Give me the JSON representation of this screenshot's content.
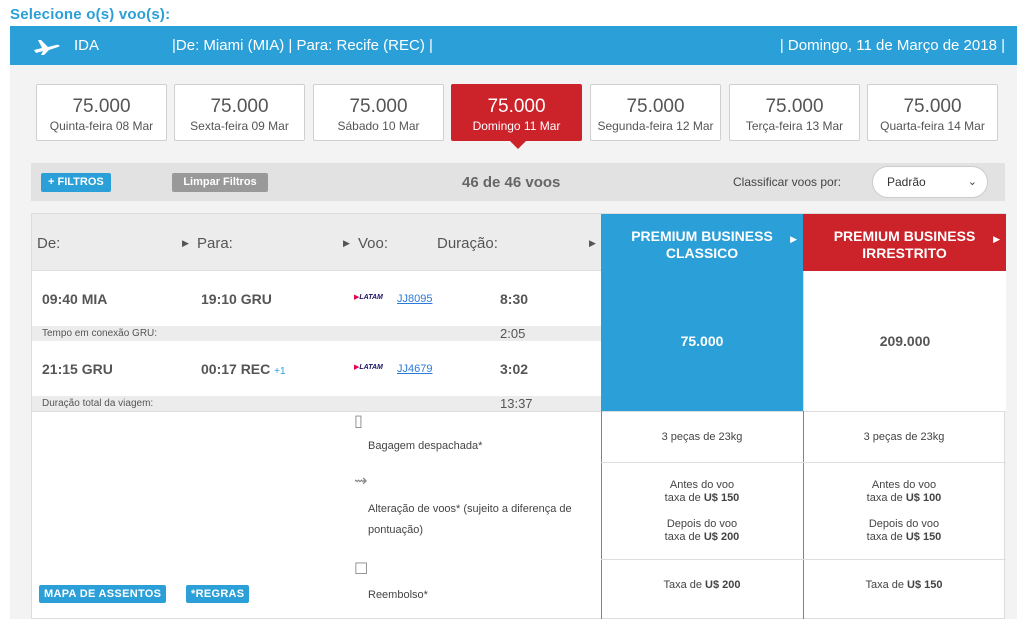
{
  "page_title": "Selecione o(s) voo(s):",
  "ida_bar": {
    "label": "IDA",
    "route": "|De: Miami (MIA)  |  Para: Recife (REC)  |",
    "date": "| Domingo, 11 de Março de 2018 |"
  },
  "days": [
    {
      "price": "75.000",
      "day": "Quinta-feira 08 Mar"
    },
    {
      "price": "75.000",
      "day": "Sexta-feira 09 Mar"
    },
    {
      "price": "75.000",
      "day": "Sábado 10 Mar"
    },
    {
      "price": "75.000",
      "day": "Domingo 11 Mar"
    },
    {
      "price": "75.000",
      "day": "Segunda-feira 12 Mar"
    },
    {
      "price": "75.000",
      "day": "Terça-feira 13 Mar"
    },
    {
      "price": "75.000",
      "day": "Quarta-feira 14 Mar"
    }
  ],
  "active_day_index": 3,
  "filter_bar": {
    "filtros_label": "+ FILTROS",
    "limpar_label": "Limpar Filtros",
    "count": "46 de 46 voos",
    "sort_label": "Classificar voos por:",
    "sort_value": "Padrão"
  },
  "table_head": {
    "de": "De:",
    "para": "Para:",
    "voo": "Voo:",
    "duracao": "Duração:",
    "col1_line1": "PREMIUM BUSINESS",
    "col1_line2": "CLASSICO",
    "col2_line1": "PREMIUM BUSINESS",
    "col2_line2": "IRRESTRITO"
  },
  "segments": [
    {
      "dep": "09:40 MIA",
      "arr": "19:10 GRU",
      "arr_plus": "",
      "airline": "LATAM",
      "flight": "JJ8095",
      "duration": "8:30"
    },
    {
      "dep": "21:15 GRU",
      "arr": "00:17 REC",
      "arr_plus": "+1",
      "airline": "LATAM",
      "flight": "JJ4679",
      "duration": "3:02"
    }
  ],
  "connection": {
    "label": "Tempo em conexão GRU:",
    "value": "2:05"
  },
  "total": {
    "label": "Duração total da viagem:",
    "value": "13:37"
  },
  "prices": {
    "classico": "75.000",
    "irrestrito": "209.000"
  },
  "benefits": {
    "bagagem": {
      "label": "Bagagem despachada*",
      "classico": "3 peças de 23kg",
      "irrestrito": "3 peças de 23kg"
    },
    "alteracao": {
      "label_line1": "Alteração de voos* (sujeito a diferença de",
      "label_line2": "pontuação)",
      "before_line1": "Antes do voo",
      "tax_prefix": "taxa de",
      "after_line1": "Depois do voo",
      "classico_before": "U$ 150",
      "classico_after": "U$ 200",
      "irrestrito_before": "U$ 100",
      "irrestrito_after": "U$ 150"
    },
    "reembolso": {
      "label": "Reembolso*",
      "prefix": "Taxa de",
      "classico": "U$ 200",
      "irrestrito": "U$ 150"
    }
  },
  "buttons": {
    "mapa": "MAPA DE ASSENTOS",
    "regras": "*REGRAS"
  },
  "colors": {
    "primary": "#2a9fd8",
    "accent": "#cc2229"
  }
}
